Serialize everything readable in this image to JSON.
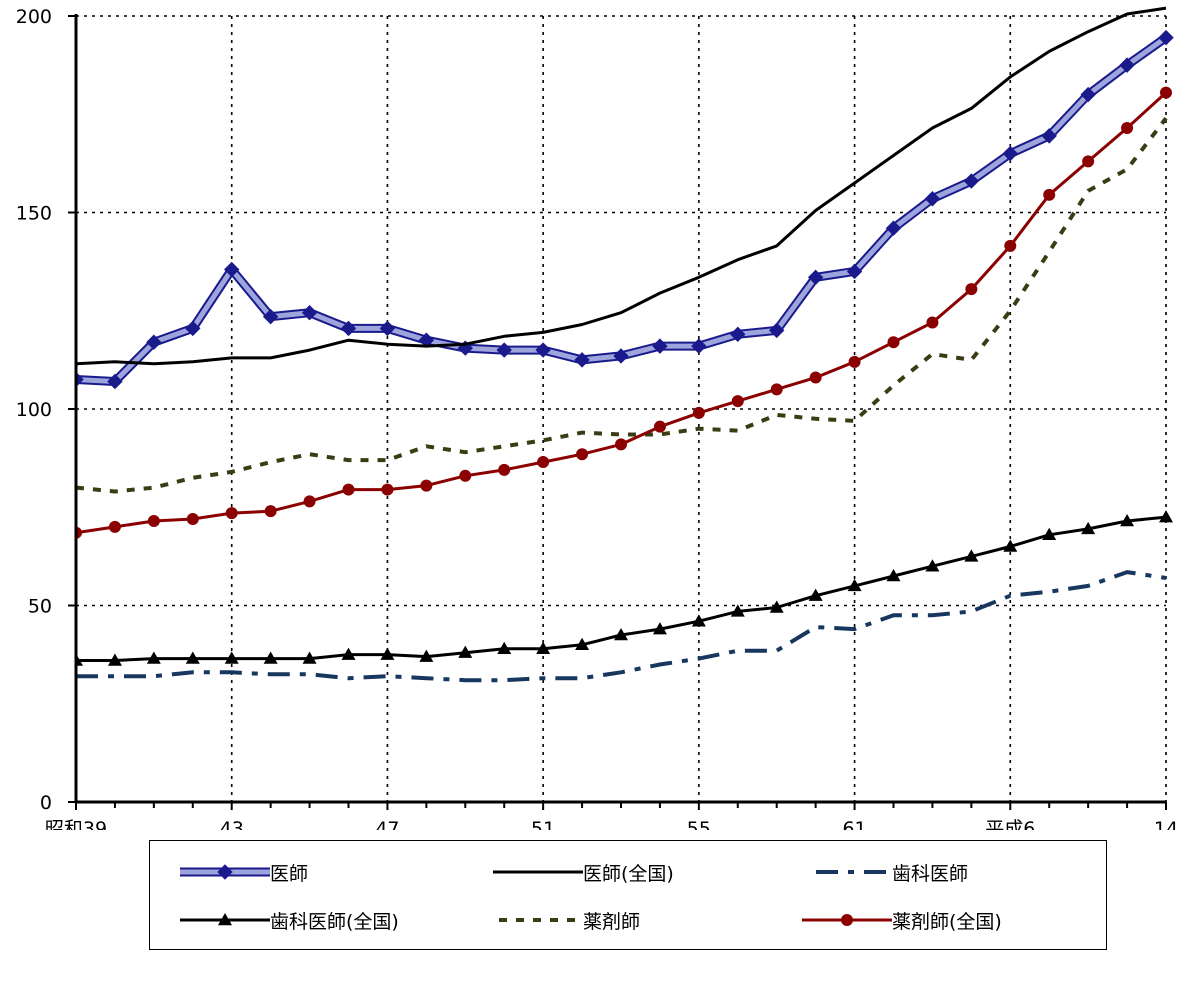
{
  "chart_data": {
    "type": "line",
    "title": "",
    "xlabel": "",
    "ylabel": "",
    "ylim": [
      0,
      200
    ],
    "y_ticks": [
      0,
      50,
      100,
      150,
      200
    ],
    "grid": "dotted, at labeled ticks",
    "legend_position": "bottom",
    "x_count": 29,
    "x_tick_labels": [
      {
        "index": 0,
        "label": "昭和39"
      },
      {
        "index": 4,
        "label": "43"
      },
      {
        "index": 8,
        "label": "47"
      },
      {
        "index": 12,
        "label": "51"
      },
      {
        "index": 16,
        "label": "55"
      },
      {
        "index": 20,
        "label": "61"
      },
      {
        "index": 24,
        "label": "平成6"
      },
      {
        "index": 28,
        "label": "14"
      }
    ],
    "series": [
      {
        "name": "医師",
        "style": "band",
        "marker": "diamond",
        "color": "#1a1a8c",
        "band_color": "#9da5dc",
        "values": [
          107.5,
          107,
          117,
          120.5,
          135.5,
          123.5,
          124.5,
          120.5,
          120.5,
          117.5,
          115.5,
          115,
          115,
          112.5,
          113.5,
          116,
          116,
          119,
          120,
          133.5,
          135,
          146,
          153.5,
          158,
          165,
          169.5,
          180,
          187.5,
          194.5
        ]
      },
      {
        "name": "医師(全国)",
        "style": "solid",
        "marker": "none",
        "color": "#000000",
        "values": [
          111.5,
          112,
          111.5,
          112,
          113,
          113,
          115,
          117.5,
          116.5,
          116,
          116.5,
          118.5,
          119.5,
          121.5,
          124.5,
          129.5,
          133.5,
          138,
          141.5,
          150.5,
          157.5,
          164.5,
          171.5,
          176.5,
          184.5,
          191,
          196,
          200.5,
          202
        ]
      },
      {
        "name": "歯科医師",
        "style": "dashdot",
        "marker": "none",
        "color": "#17375e",
        "values": [
          32,
          32,
          32,
          33,
          33,
          32.5,
          32.5,
          31.5,
          32,
          31.5,
          31,
          31,
          31.5,
          31.5,
          33,
          35,
          36.5,
          38.5,
          38.5,
          44.5,
          44,
          47.5,
          47.5,
          48.5,
          52.5,
          53.5,
          55,
          58.5,
          57
        ]
      },
      {
        "name": "歯科医師(全国)",
        "style": "solid",
        "marker": "triangle",
        "color": "#000000",
        "values": [
          36,
          36,
          36.5,
          36.5,
          36.5,
          36.5,
          36.5,
          37.5,
          37.5,
          37,
          38,
          39,
          39,
          40,
          42.5,
          44,
          46,
          48.5,
          49.5,
          52.5,
          55,
          57.5,
          60,
          62.5,
          65,
          68,
          69.5,
          71.5,
          72.5
        ]
      },
      {
        "name": "薬剤師",
        "style": "dashed",
        "marker": "none",
        "color": "#3c3c14",
        "values": [
          80,
          79,
          80,
          82.5,
          84,
          86.5,
          88.5,
          87,
          87,
          90.5,
          89,
          90.5,
          92,
          94,
          93.5,
          93.5,
          95,
          94.5,
          98.5,
          97.5,
          97,
          106,
          114,
          112.5,
          125,
          140,
          155.5,
          161,
          174
        ]
      },
      {
        "name": "薬剤師(全国)",
        "style": "solid",
        "marker": "circle",
        "color": "#8b0000",
        "values": [
          68.5,
          70,
          71.5,
          72,
          73.5,
          74,
          76.5,
          79.5,
          79.5,
          80.5,
          83,
          84.5,
          86.5,
          88.5,
          91,
          95.5,
          99,
          102,
          105,
          108,
          112,
          117,
          122,
          130.5,
          141.5,
          154.5,
          163,
          171.5,
          180.5
        ]
      }
    ]
  },
  "legend": {
    "items": [
      {
        "label": "医師",
        "series": 0
      },
      {
        "label": "医師(全国)",
        "series": 1
      },
      {
        "label": "歯科医師",
        "series": 2
      },
      {
        "label": "歯科医師(全国)",
        "series": 3
      },
      {
        "label": "薬剤師",
        "series": 4
      },
      {
        "label": "薬剤師(全国)",
        "series": 5
      }
    ]
  }
}
